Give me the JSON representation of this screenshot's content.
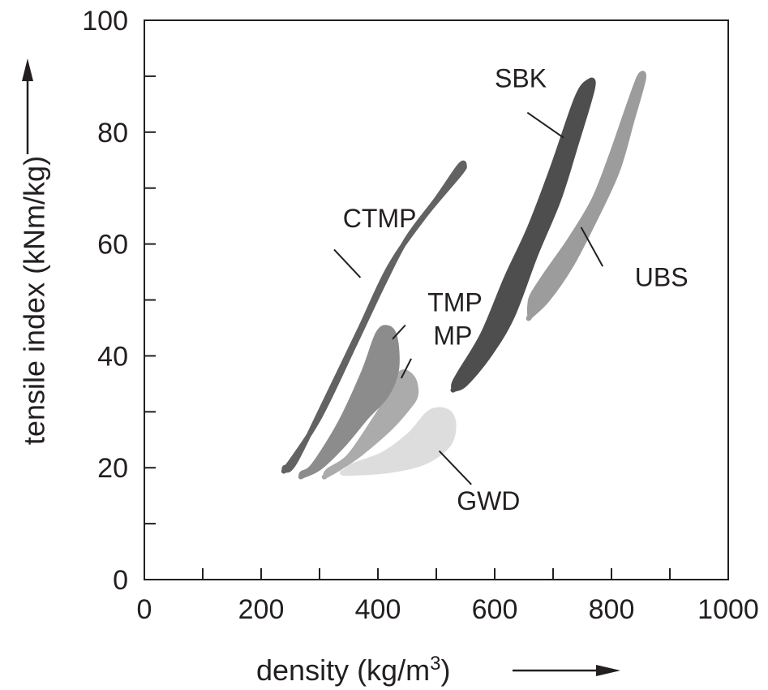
{
  "chart_data": {
    "type": "area",
    "xlabel": "density (kg/m",
    "xlabel_sup": "3",
    "xlabel_close": ")",
    "ylabel": "tensile index (kNm/kg)",
    "xlim": [
      0,
      1000
    ],
    "ylim": [
      0,
      100
    ],
    "x_ticks": [
      "0",
      "200",
      "400",
      "600",
      "800",
      "1000"
    ],
    "y_ticks": [
      "0",
      "20",
      "40",
      "60",
      "80",
      "100"
    ],
    "grid": false,
    "regions": [
      {
        "name": "GWD",
        "color": "#dddddd",
        "outline": [
          [
            345,
            19
          ],
          [
            420,
            19.5
          ],
          [
            480,
            21
          ],
          [
            520,
            24
          ],
          [
            530,
            27.5
          ],
          [
            520,
            30
          ],
          [
            490,
            30
          ],
          [
            455,
            26
          ],
          [
            410,
            22.5
          ],
          [
            360,
            20.5
          ],
          [
            345,
            19.5
          ]
        ]
      },
      {
        "name": "MP",
        "color": "#ababab",
        "outline": [
          [
            310,
            18.5
          ],
          [
            335,
            20
          ],
          [
            370,
            22.5
          ],
          [
            420,
            27
          ],
          [
            450,
            30.5
          ],
          [
            465,
            33
          ],
          [
            460,
            36
          ],
          [
            440,
            37
          ],
          [
            420,
            33
          ],
          [
            390,
            28
          ],
          [
            350,
            22
          ],
          [
            315,
            19.5
          ],
          [
            310,
            18.5
          ]
        ]
      },
      {
        "name": "TMP",
        "color": "#8c8c8c",
        "outline": [
          [
            270,
            18.5
          ],
          [
            300,
            20
          ],
          [
            340,
            24
          ],
          [
            380,
            29
          ],
          [
            415,
            33
          ],
          [
            432,
            37.5
          ],
          [
            430,
            43
          ],
          [
            418,
            45
          ],
          [
            400,
            44
          ],
          [
            375,
            37
          ],
          [
            335,
            28
          ],
          [
            290,
            20.5
          ],
          [
            270,
            19
          ],
          [
            270,
            18.5
          ]
        ]
      },
      {
        "name": "CTMP",
        "color": "#626262",
        "outline": [
          [
            240,
            19.5
          ],
          [
            258,
            21
          ],
          [
            310,
            32
          ],
          [
            370,
            45
          ],
          [
            420,
            56
          ],
          [
            480,
            65
          ],
          [
            540,
            72.5
          ],
          [
            548,
            74
          ],
          [
            540,
            74
          ],
          [
            500,
            68
          ],
          [
            450,
            61
          ],
          [
            410,
            53
          ],
          [
            360,
            42
          ],
          [
            300,
            29
          ],
          [
            250,
            21
          ],
          [
            240,
            20
          ],
          [
            240,
            19.5
          ]
        ]
      },
      {
        "name": "SBK",
        "color": "#4e4e4e",
        "outline": [
          [
            530,
            34
          ],
          [
            550,
            35
          ],
          [
            590,
            40
          ],
          [
            630,
            47
          ],
          [
            670,
            58
          ],
          [
            710,
            68
          ],
          [
            740,
            78
          ],
          [
            768,
            88
          ],
          [
            760,
            89
          ],
          [
            740,
            86
          ],
          [
            700,
            74
          ],
          [
            660,
            63
          ],
          [
            620,
            54
          ],
          [
            580,
            44
          ],
          [
            540,
            37
          ],
          [
            530,
            35
          ],
          [
            530,
            34
          ]
        ]
      },
      {
        "name": "UBS",
        "color": "#9c9c9c",
        "outline": [
          [
            660,
            47
          ],
          [
            690,
            50
          ],
          [
            730,
            56
          ],
          [
            770,
            64
          ],
          [
            810,
            73
          ],
          [
            835,
            82
          ],
          [
            855,
            89.5
          ],
          [
            848,
            90
          ],
          [
            830,
            85
          ],
          [
            800,
            76
          ],
          [
            770,
            68
          ],
          [
            730,
            61
          ],
          [
            690,
            55
          ],
          [
            665,
            51
          ],
          [
            660,
            49
          ],
          [
            660,
            47
          ]
        ]
      }
    ],
    "labels": [
      {
        "text": "CTMP",
        "x": 340,
        "y": 63,
        "leader": [
          [
            325,
            59
          ],
          [
            370,
            54
          ]
        ]
      },
      {
        "text": "TMP",
        "x": 485,
        "y": 48,
        "leader": [
          [
            447,
            45.5
          ],
          [
            425,
            43
          ]
        ]
      },
      {
        "text": "MP",
        "x": 495,
        "y": 42,
        "leader": [
          [
            457,
            39.5
          ],
          [
            440,
            36
          ]
        ]
      },
      {
        "text": "GWD",
        "x": 535,
        "y": 12.5,
        "leader": [
          [
            560,
            17
          ],
          [
            505,
            23
          ]
        ]
      },
      {
        "text": "SBK",
        "x": 600,
        "y": 88,
        "leader": [
          [
            656,
            83.5
          ],
          [
            718,
            79
          ]
        ]
      },
      {
        "text": "UBS",
        "x": 840,
        "y": 52.5,
        "leader": [
          [
            785,
            56
          ],
          [
            748,
            63
          ]
        ]
      }
    ]
  }
}
